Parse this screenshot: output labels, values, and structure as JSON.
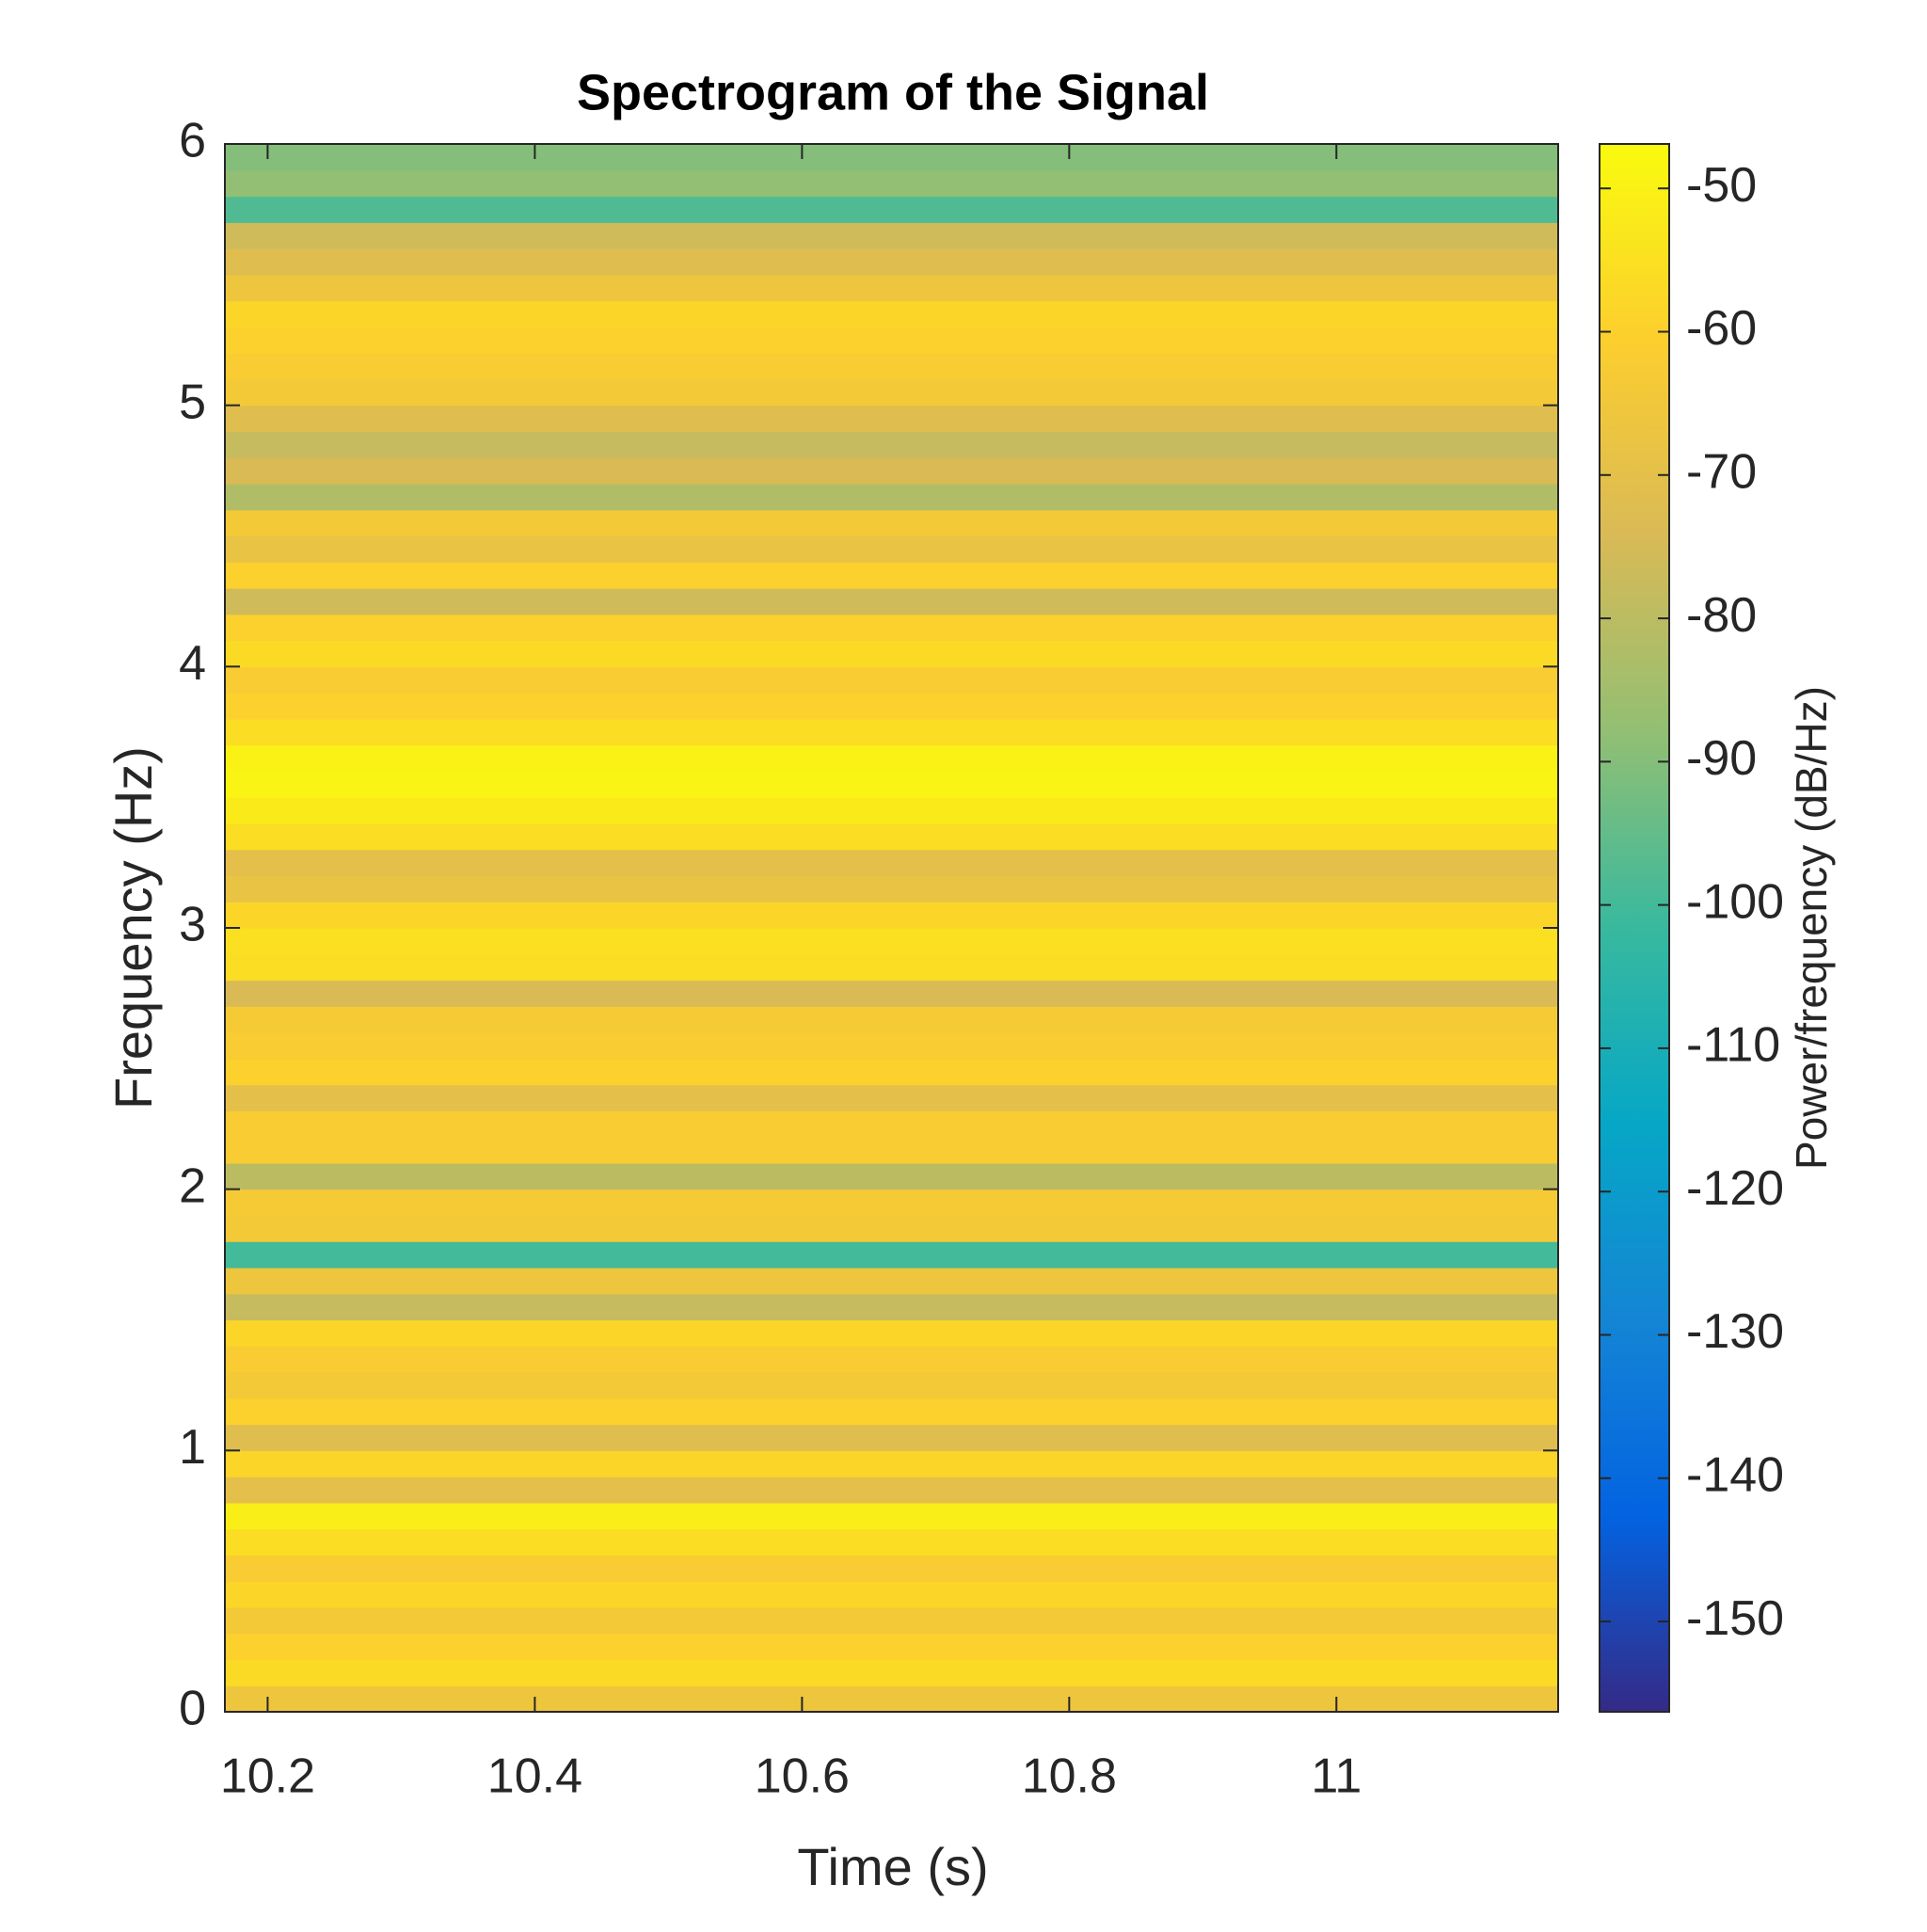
{
  "chart_data": {
    "type": "heatmap",
    "title": "Spectrogram of the Signal",
    "xlabel": "Time (s)",
    "ylabel": "Frequency (Hz)",
    "colorbar_label": "Power/frequency (dB/Hz)",
    "xlim": [
      10.168,
      11.166
    ],
    "xticks": [
      10.2,
      10.4,
      10.6,
      10.8,
      11
    ],
    "ylim": [
      0,
      6
    ],
    "yticks": [
      0,
      1,
      2,
      3,
      4,
      5,
      6
    ],
    "clim": [
      -156.3,
      -46.9
    ],
    "cticks": [
      -50,
      -60,
      -70,
      -80,
      -90,
      -100,
      -110,
      -120,
      -130,
      -140,
      -150
    ],
    "colormap": [
      "#352a87",
      "#0363e1",
      "#1485d4",
      "#06a7c6",
      "#38b99e",
      "#92bf73",
      "#d9ba56",
      "#fcce2e",
      "#f9fb0e"
    ],
    "y_bins": [
      0,
      0.1,
      0.2,
      0.3,
      0.4,
      0.5,
      0.6,
      0.7,
      0.8,
      0.9,
      1,
      1.1,
      1.2,
      1.3,
      1.4,
      1.5,
      1.6,
      1.7,
      1.8,
      1.9,
      2,
      2.1,
      2.2,
      2.3,
      2.4,
      2.5,
      2.6,
      2.7,
      2.8,
      2.9,
      3,
      3.1,
      3.2,
      3.3,
      3.4,
      3.5,
      3.6,
      3.7,
      3.8,
      3.9,
      4,
      4.1,
      4.2,
      4.3,
      4.4,
      4.5,
      4.6,
      4.7,
      4.8,
      4.9,
      5,
      5.1,
      5.2,
      5.3,
      5.4,
      5.5,
      5.6,
      5.7,
      5.8,
      5.9,
      6
    ],
    "values": [
      -66,
      -57,
      -60,
      -64,
      -58,
      -62,
      -56,
      -51,
      -70,
      -58,
      -72,
      -60,
      -64,
      -62,
      -58,
      -78,
      -66,
      -100,
      -64,
      -63,
      -80,
      -62,
      -62,
      -70,
      -60,
      -62,
      -63,
      -74,
      -56,
      -55,
      -58,
      -68,
      -70,
      -56,
      -52,
      -49,
      -50,
      -56,
      -60,
      -62,
      -57,
      -60,
      -76,
      -60,
      -68,
      -64,
      -82,
      -74,
      -78,
      -72,
      -64,
      -62,
      -60,
      -58,
      -66,
      -72,
      -76,
      -98,
      -88,
      -90
    ]
  }
}
